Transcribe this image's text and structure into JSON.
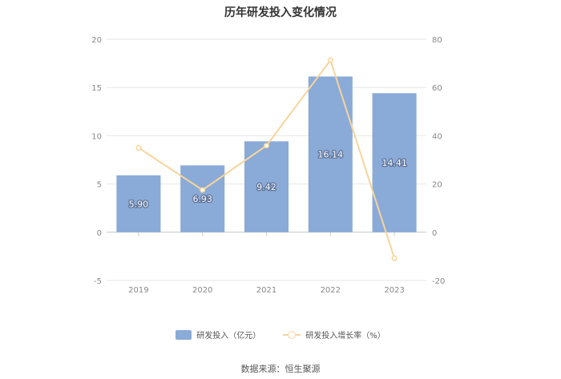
{
  "chart_data": {
    "type": "bar",
    "title": "历年研发投入变化情况",
    "categories": [
      "2019",
      "2020",
      "2021",
      "2022",
      "2023"
    ],
    "series": [
      {
        "name": "研发投入（亿元）",
        "type": "bar",
        "axis": "left",
        "color": "#8aaad8",
        "values": [
          5.9,
          6.93,
          9.42,
          16.14,
          14.41
        ],
        "value_labels": [
          "5.90",
          "6.93",
          "9.42",
          "16.14",
          "14.41"
        ]
      },
      {
        "name": "研发投入增长率（%）",
        "type": "line",
        "axis": "right",
        "color": "#f7d49c",
        "values": [
          35.0,
          17.5,
          35.9,
          71.3,
          -10.8
        ]
      }
    ],
    "y_left": {
      "min": -5,
      "max": 20,
      "ticks": [
        "-5",
        "0",
        "5",
        "10",
        "15",
        "20"
      ]
    },
    "y_right": {
      "min": -20,
      "max": 80,
      "ticks": [
        "-20",
        "0",
        "20",
        "40",
        "60",
        "80"
      ]
    },
    "grid": true,
    "legend_position": "bottom"
  },
  "source": "数据来源：恒生聚源"
}
